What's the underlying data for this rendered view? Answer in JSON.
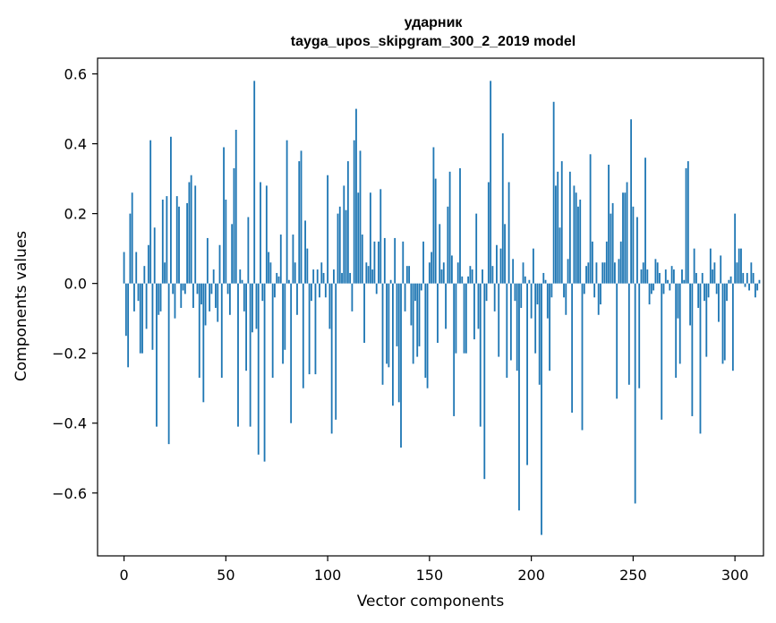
{
  "chart_data": {
    "type": "bar",
    "title": [
      "ударник",
      "tayga_upos_skipgram_300_2_2019 model"
    ],
    "xlabel": "Vector components",
    "ylabel": "Components values",
    "xlim": [
      -13,
      314
    ],
    "ylim": [
      -0.78,
      0.645
    ],
    "xticks": [
      0,
      50,
      100,
      150,
      200,
      250,
      300
    ],
    "yticks": [
      -0.6,
      -0.4,
      -0.2,
      0.0,
      0.2,
      0.4,
      0.6
    ],
    "ytick_labels": [
      "−0.6",
      "−0.4",
      "−0.2",
      "0.0",
      "0.2",
      "0.4",
      "0.6"
    ],
    "bar_color": "#1f77b4",
    "grid": false,
    "values": [
      0.09,
      -0.15,
      -0.24,
      0.2,
      0.26,
      -0.08,
      0.09,
      -0.05,
      -0.2,
      -0.2,
      0.05,
      -0.13,
      0.11,
      0.41,
      -0.19,
      0.16,
      -0.41,
      -0.09,
      -0.08,
      0.24,
      0.06,
      0.25,
      -0.46,
      0.42,
      -0.03,
      -0.1,
      0.25,
      0.22,
      -0.07,
      -0.02,
      -0.03,
      0.23,
      0.29,
      0.31,
      -0.07,
      0.28,
      -0.03,
      -0.27,
      -0.06,
      -0.34,
      -0.12,
      0.13,
      -0.08,
      -0.03,
      0.04,
      -0.07,
      -0.11,
      0.11,
      -0.27,
      0.39,
      0.24,
      -0.03,
      -0.09,
      0.17,
      0.33,
      0.44,
      -0.41,
      0.04,
      0.01,
      -0.08,
      -0.25,
      0.19,
      -0.41,
      -0.14,
      0.58,
      -0.13,
      -0.49,
      0.29,
      -0.05,
      -0.51,
      0.28,
      0.09,
      0.06,
      -0.27,
      -0.04,
      0.03,
      0.02,
      0.14,
      -0.23,
      -0.19,
      0.41,
      0.01,
      -0.4,
      0.14,
      0.06,
      -0.09,
      0.35,
      0.38,
      -0.3,
      0.18,
      0.1,
      -0.26,
      -0.05,
      0.04,
      -0.26,
      0.04,
      -0.04,
      0.06,
      0.03,
      -0.04,
      0.31,
      -0.13,
      -0.43,
      0.04,
      -0.39,
      0.2,
      0.22,
      0.03,
      0.28,
      0.21,
      0.35,
      0.03,
      -0.08,
      0.41,
      0.5,
      0.26,
      0.38,
      0.14,
      -0.17,
      0.06,
      0.05,
      0.26,
      0.04,
      0.12,
      -0.03,
      0.12,
      0.27,
      -0.29,
      0.13,
      -0.23,
      -0.24,
      0.01,
      -0.35,
      0.13,
      -0.18,
      -0.34,
      -0.47,
      0.12,
      -0.08,
      0.05,
      0.05,
      -0.12,
      -0.23,
      -0.05,
      -0.21,
      -0.18,
      -0.02,
      0.12,
      -0.27,
      -0.3,
      0.06,
      0.09,
      0.39,
      0.3,
      -0.17,
      0.17,
      0.04,
      0.06,
      -0.13,
      0.22,
      0.32,
      0.08,
      -0.38,
      -0.2,
      0.06,
      0.33,
      0.02,
      -0.2,
      -0.2,
      0.02,
      0.05,
      0.04,
      -0.16,
      0.2,
      -0.13,
      -0.41,
      0.04,
      -0.56,
      -0.05,
      0.29,
      0.58,
      0.05,
      -0.08,
      0.11,
      -0.21,
      0.1,
      0.43,
      0.17,
      -0.27,
      0.29,
      -0.22,
      0.07,
      -0.05,
      -0.25,
      -0.65,
      -0.07,
      0.06,
      0.02,
      -0.52,
      0.01,
      -0.1,
      0.1,
      -0.2,
      -0.06,
      -0.29,
      -0.72,
      0.03,
      0.01,
      -0.1,
      -0.25,
      -0.04,
      0.52,
      0.28,
      0.32,
      0.16,
      0.35,
      -0.04,
      -0.09,
      0.07,
      0.32,
      -0.37,
      0.28,
      0.26,
      0.22,
      0.24,
      -0.42,
      -0.03,
      0.05,
      0.06,
      0.37,
      0.12,
      -0.04,
      0.06,
      -0.09,
      -0.06,
      0.06,
      0.06,
      0.12,
      0.34,
      0.2,
      0.23,
      0.06,
      -0.33,
      0.07,
      0.12,
      0.26,
      0.26,
      0.29,
      -0.29,
      0.47,
      0.22,
      -0.63,
      0.19,
      -0.3,
      0.04,
      0.06,
      0.36,
      0.04,
      -0.06,
      -0.03,
      -0.02,
      0.07,
      0.06,
      0.03,
      -0.39,
      -0.03,
      0.04,
      0.01,
      -0.02,
      0.05,
      0.04,
      -0.27,
      -0.1,
      -0.23,
      0.04,
      0.01,
      0.33,
      0.35,
      -0.12,
      -0.38,
      0.1,
      0.03,
      -0.07,
      -0.43,
      0.03,
      -0.05,
      -0.21,
      -0.04,
      0.1,
      0.04,
      0.06,
      -0.03,
      -0.11,
      0.08,
      -0.23,
      -0.22,
      -0.05,
      0.01,
      0.02,
      -0.25,
      0.2,
      0.06,
      0.1,
      0.1,
      0.03,
      -0.01,
      0.03,
      -0.02,
      0.06,
      0.03,
      -0.04,
      -0.02,
      0.01
    ]
  }
}
